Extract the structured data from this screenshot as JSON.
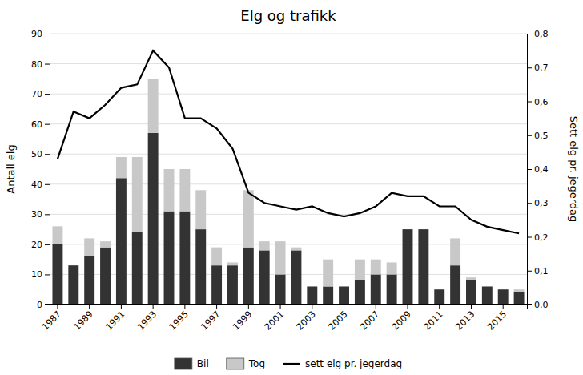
{
  "chart_data": {
    "type": "bar",
    "title": "Elg og trafikk",
    "stacked": true,
    "grid": true,
    "legend": "bottom",
    "categories": [
      "1987",
      null,
      "1989",
      null,
      "1991",
      null,
      "1993",
      null,
      "1995",
      null,
      "1997",
      null,
      "1999",
      null,
      "2001",
      null,
      "2003",
      null,
      "2005",
      null,
      "2007",
      null,
      "2009",
      null,
      "2011",
      null,
      "2013",
      null,
      "2015",
      null
    ],
    "series": [
      {
        "name": "Bil",
        "color": "#333333",
        "values": [
          20,
          13,
          16,
          19,
          42,
          24,
          57,
          31,
          31,
          25,
          13,
          13,
          19,
          18,
          10,
          18,
          6,
          6,
          6,
          8,
          10,
          10,
          25,
          25,
          5,
          13,
          8,
          6,
          5,
          4
        ]
      },
      {
        "name": "Tog",
        "color": "#c8c8c8",
        "values": [
          6,
          0,
          6,
          2,
          7,
          25,
          18,
          14,
          14,
          13,
          6,
          1,
          19,
          3,
          11,
          1,
          0,
          9,
          0,
          7,
          5,
          4,
          0,
          0,
          0,
          9,
          1,
          0,
          0,
          1
        ]
      },
      {
        "name": "sett elg pr. jegerdag",
        "type": "line",
        "axis": "y2",
        "color": "#000000",
        "values": [
          0.43,
          0.57,
          0.55,
          0.59,
          0.64,
          0.65,
          0.75,
          0.7,
          0.55,
          0.55,
          0.52,
          0.46,
          0.33,
          0.3,
          0.29,
          0.28,
          0.29,
          0.27,
          0.26,
          0.27,
          0.29,
          0.33,
          0.32,
          0.32,
          0.29,
          0.29,
          0.25,
          0.23,
          0.22,
          0.21
        ]
      }
    ],
    "ylabel": "Antall elg",
    "y2label": "Sett elg pr. jegerdag",
    "ylim": [
      0,
      90
    ],
    "yticks": [
      0,
      10,
      20,
      30,
      40,
      50,
      60,
      70,
      80,
      90
    ],
    "y2lim": [
      0,
      0.8
    ],
    "y2ticks": [
      {
        "value": 0,
        "label": "0,0"
      },
      {
        "value": 0.1,
        "label": "0,1"
      },
      {
        "value": 0.2,
        "label": "0,2"
      },
      {
        "value": 0.3,
        "label": "0,3"
      },
      {
        "value": 0.4,
        "label": "0,4"
      },
      {
        "value": 0.5,
        "label": "0,5"
      },
      {
        "value": 0.6,
        "label": "0,6"
      },
      {
        "value": 0.7,
        "label": "0,7"
      },
      {
        "value": 0.8,
        "label": "0,8"
      }
    ]
  }
}
